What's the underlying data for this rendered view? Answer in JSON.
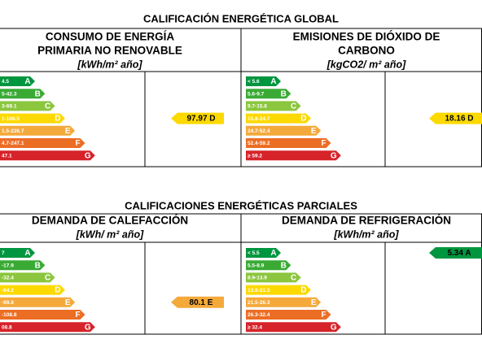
{
  "sections": [
    {
      "title": "CALIFICACIÓN ENERGÉTICA GLOBAL",
      "panels": [
        {
          "heading": [
            "CONSUMO DE ENERGÍA",
            "PRIMARIA NO RENOVABLE"
          ],
          "unit": "[kWh/m² año]",
          "scale": [
            {
              "range": "4.5",
              "letter": "A"
            },
            {
              "range": "5-42.3",
              "letter": "B"
            },
            {
              "range": "3-69.1",
              "letter": "C"
            },
            {
              "range": "1-106.5",
              "letter": "D"
            },
            {
              "range": "1.5-226.7",
              "letter": "E"
            },
            {
              "range": "4.7-247.1",
              "letter": "F"
            },
            {
              "range": "47.1",
              "letter": "G"
            }
          ],
          "indicator": {
            "label": "97.97 D",
            "row": 3
          }
        },
        {
          "heading": [
            "EMISIONES DE DIÓXIDO DE",
            "CARBONO"
          ],
          "unit": "[kgCO2/ m² año]",
          "scale": [
            {
              "range": "< 5.6",
              "letter": "A"
            },
            {
              "range": "5.6-9.7",
              "letter": "B"
            },
            {
              "range": "9.7-15.8",
              "letter": "C"
            },
            {
              "range": "15.8-24.7",
              "letter": "D"
            },
            {
              "range": "24.7-52.4",
              "letter": "E"
            },
            {
              "range": "52.4-59.2",
              "letter": "F"
            },
            {
              "range": "≥ 59.2",
              "letter": "G"
            }
          ],
          "indicator": {
            "label": "18.16 D",
            "row": 3
          }
        }
      ]
    },
    {
      "title": "CALIFICACIONES ENERGÉTICAS PARCIALES",
      "panels": [
        {
          "heading": [
            "DEMANDA DE CALEFACCIÓN"
          ],
          "unit": "[kWh/ m² año]",
          "scale": [
            {
              "range": "7",
              "letter": "A"
            },
            {
              "range": "-17.9",
              "letter": "B"
            },
            {
              "range": "-32.4",
              "letter": "C"
            },
            {
              "range": "-64.2",
              "letter": "D"
            },
            {
              "range": "-99.8",
              "letter": "E"
            },
            {
              "range": "-108.8",
              "letter": "F"
            },
            {
              "range": "08.8",
              "letter": "G"
            }
          ],
          "indicator": {
            "label": "80.1 E",
            "row": 4
          }
        },
        {
          "heading": [
            "DEMANDA DE REFRIGERACIÓN"
          ],
          "unit": "[kWh/m² año]",
          "scale": [
            {
              "range": "< 5.5",
              "letter": "A"
            },
            {
              "range": "5.5-8.9",
              "letter": "B"
            },
            {
              "range": "8.9-13.9",
              "letter": "C"
            },
            {
              "range": "13.9-21.5",
              "letter": "D"
            },
            {
              "range": "21.5-26.3",
              "letter": "E"
            },
            {
              "range": "26.3-32.4",
              "letter": "F"
            },
            {
              "range": "≥ 32.4",
              "letter": "G"
            }
          ],
          "indicator": {
            "label": "5.34 A",
            "row": 0
          }
        }
      ]
    }
  ]
}
